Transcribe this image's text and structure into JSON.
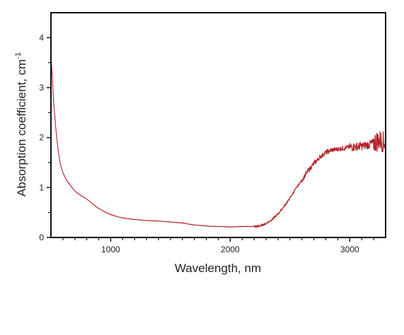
{
  "chart_data": {
    "type": "line",
    "title": "",
    "xlabel": "Wavelength, nm",
    "ylabel_main": "Absorption coefficient, cm",
    "ylabel_sup": "-1",
    "xlim": [
      500,
      3300
    ],
    "ylim": [
      0,
      4.5
    ],
    "x_major_ticks": [
      1000,
      2000,
      3000
    ],
    "x_minor_ticks": [
      600,
      700,
      800,
      900,
      1100,
      1200,
      1300,
      1400,
      1500,
      1600,
      1700,
      1800,
      1900,
      2100,
      2200,
      2300,
      2400,
      2500,
      2600,
      2700,
      2800,
      2900,
      3100,
      3200
    ],
    "y_major_ticks": [
      0,
      1,
      2,
      3,
      4
    ],
    "y_minor_ticks": [
      0.5,
      1.5,
      2.5,
      3.5
    ],
    "x_tick_labels": [
      "1000",
      "2000",
      "3000"
    ],
    "y_tick_labels": [
      "0",
      "1",
      "2",
      "3",
      "4"
    ],
    "grid": false,
    "line_color": "#b22228",
    "series": [
      {
        "x": [
          500,
          510,
          520,
          540,
          560,
          580,
          600,
          630,
          660,
          700,
          750,
          800,
          850,
          900,
          950,
          1000,
          1050,
          1100,
          1200,
          1300,
          1400,
          1500,
          1600,
          1650,
          1700,
          1800,
          1900,
          2000,
          2100,
          2200,
          2250,
          2300,
          2350,
          2400,
          2450,
          2500,
          2550,
          2600,
          2650,
          2700,
          2750,
          2800,
          2850,
          2900,
          2950,
          3000,
          3050,
          3100,
          3150,
          3200,
          3250,
          3300
        ],
        "y": [
          3.6,
          3.3,
          2.8,
          2.2,
          1.75,
          1.45,
          1.3,
          1.15,
          1.05,
          0.93,
          0.84,
          0.77,
          0.67,
          0.58,
          0.51,
          0.46,
          0.42,
          0.39,
          0.36,
          0.34,
          0.33,
          0.31,
          0.29,
          0.27,
          0.25,
          0.23,
          0.22,
          0.21,
          0.22,
          0.22,
          0.23,
          0.28,
          0.36,
          0.47,
          0.62,
          0.79,
          0.98,
          1.15,
          1.33,
          1.48,
          1.61,
          1.7,
          1.75,
          1.77,
          1.79,
          1.81,
          1.82,
          1.83,
          1.85,
          1.9,
          1.95,
          1.9
        ]
      }
    ]
  }
}
